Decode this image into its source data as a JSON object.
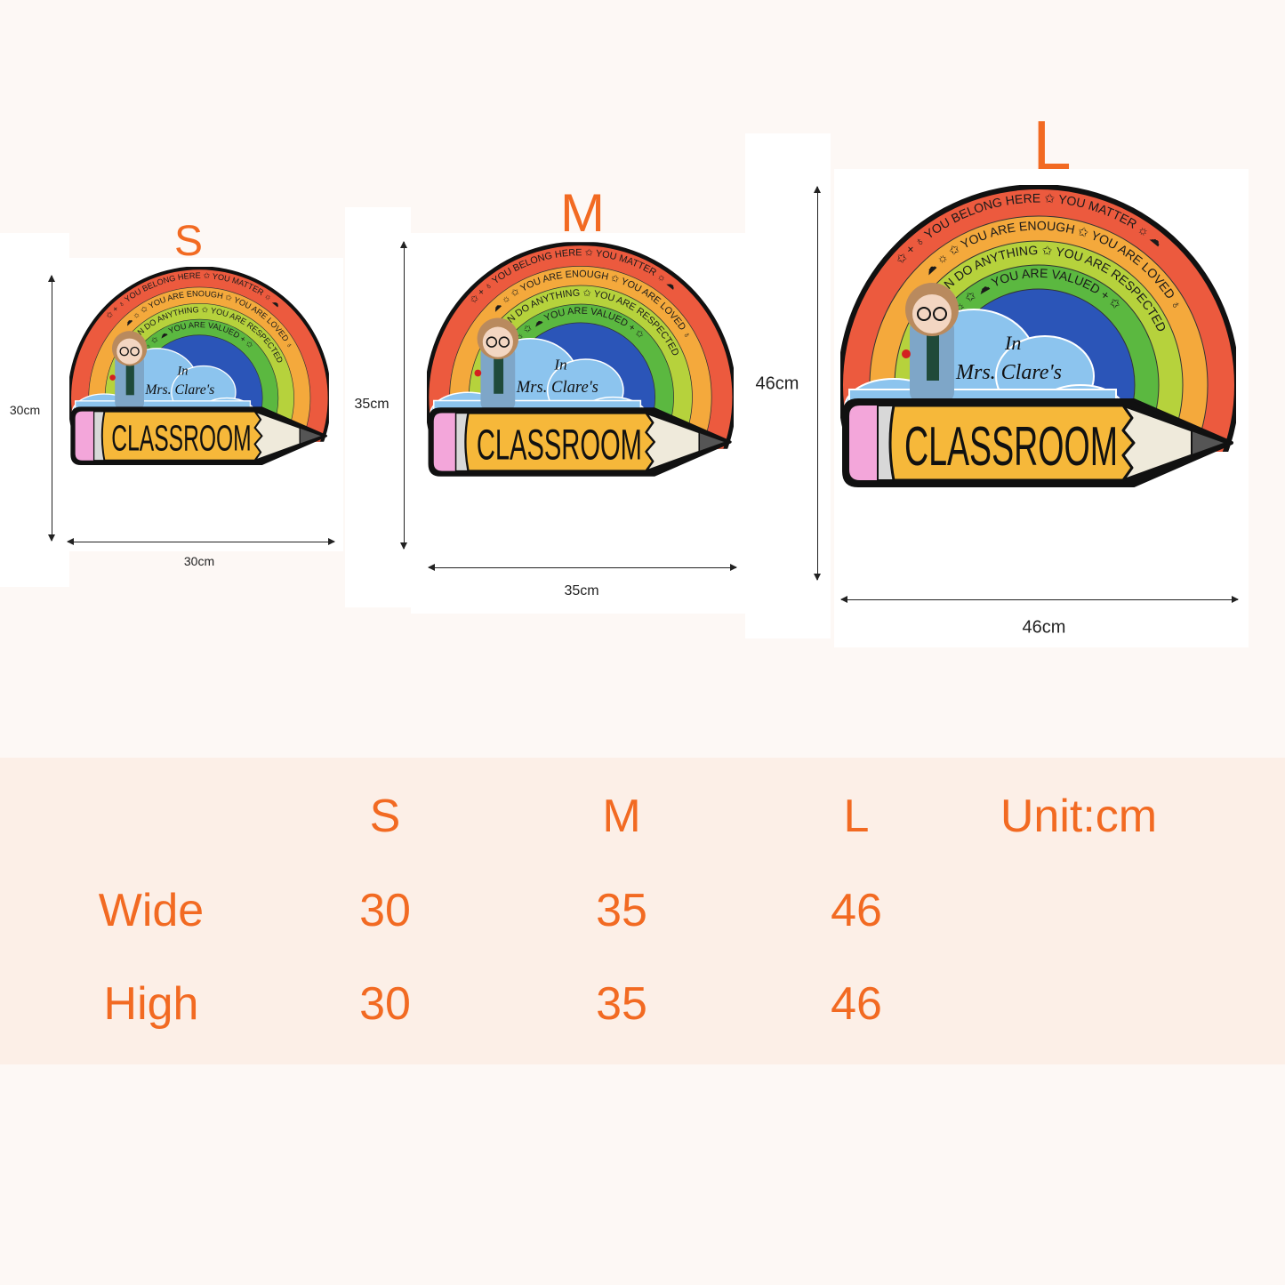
{
  "colors": {
    "accent": "#f26a22",
    "band": "#fcefe7",
    "background": "#fdf8f5"
  },
  "sizes": [
    {
      "letter": "S",
      "height_label": "30cm",
      "width_label": "30cm"
    },
    {
      "letter": "M",
      "height_label": "35cm",
      "width_label": "35cm"
    },
    {
      "letter": "L",
      "height_label": "46cm",
      "width_label": "46cm"
    }
  ],
  "sign": {
    "red_band": "✩ + ♁ YOU BELONG HERE ✩ YOU MATTER ☼ ☁",
    "orange_band": "☁ ☼ ✩ YOU ARE ENOUGH ✩ YOU ARE LOVED ♁",
    "yellow_band": "YOU CAN DO ANYTHING ✩ YOU ARE RESPECTED",
    "green_band": "☼ ✩ ☁ YOU ARE VALUED + ✩",
    "in": "In",
    "name": "Mrs. Clare's",
    "word": "CLASSROOM"
  },
  "table": {
    "headers": [
      "S",
      "M",
      "L",
      "Unit:cm"
    ],
    "rows": [
      {
        "label": "Wide",
        "values": [
          "30",
          "35",
          "46"
        ]
      },
      {
        "label": "High",
        "values": [
          "30",
          "35",
          "46"
        ]
      }
    ]
  }
}
